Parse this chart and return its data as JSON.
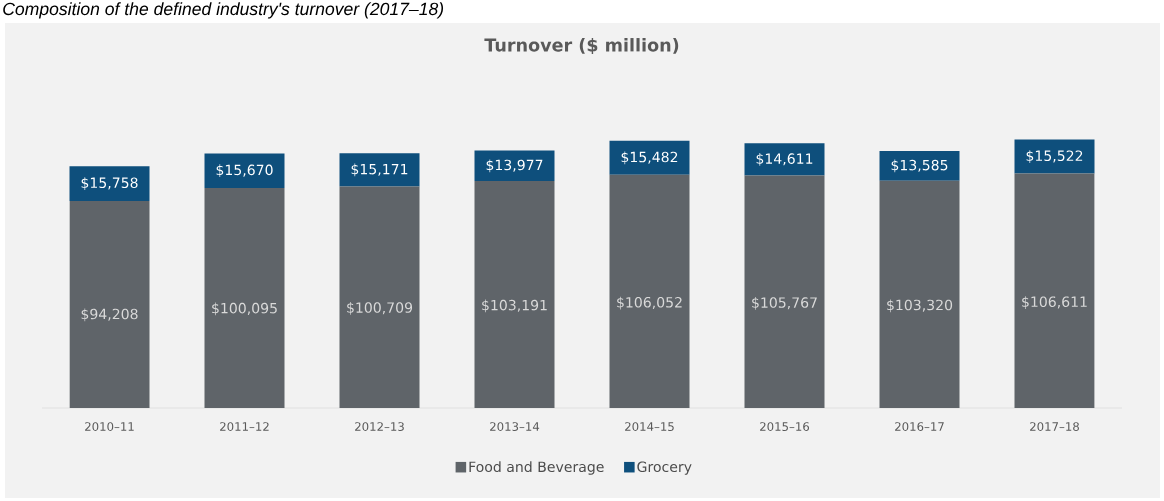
{
  "chart_data": {
    "type": "bar",
    "stacked": true,
    "title": "Turnover ($ million)",
    "annotations": [
      "Composition of the defined industry's turnover (2017–18)"
    ],
    "categories": [
      "2010–11",
      "2011–12",
      "2012–13",
      "2013–14",
      "2014–15",
      "2015–16",
      "2016–17",
      "2017–18"
    ],
    "series": [
      {
        "name": "Food and Beverage",
        "color": "#5f6469",
        "values": [
          94208,
          100095,
          100709,
          103191,
          106052,
          105767,
          103320,
          106611
        ],
        "value_labels": [
          "$94,208",
          "$100,095",
          "$100,709",
          "$103,191",
          "$106,052",
          "$105,767",
          "$103,320",
          "$106,611"
        ]
      },
      {
        "name": "Grocery",
        "color": "#0e4f7c",
        "values": [
          15758,
          15670,
          15171,
          13977,
          15482,
          14611,
          13585,
          15522
        ],
        "value_labels": [
          "$15,758",
          "$15,670",
          "$15,171",
          "$13,977",
          "$15,482",
          "$14,611",
          "$13,585",
          "$15,522"
        ]
      }
    ],
    "legend": "bottom"
  }
}
